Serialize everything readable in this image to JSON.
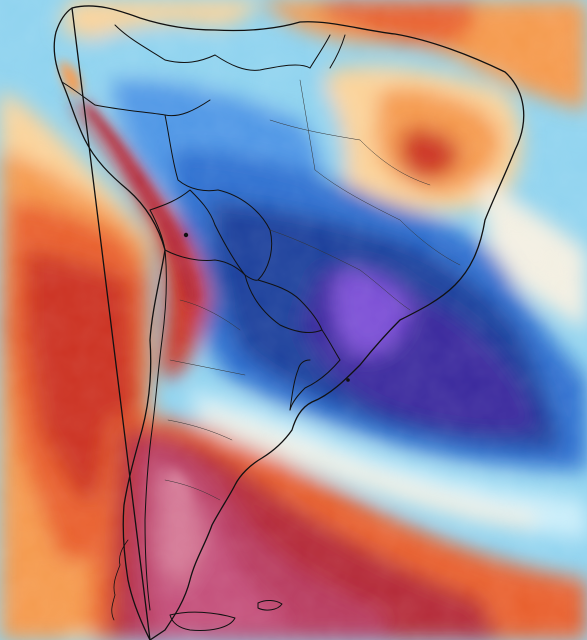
{
  "map": {
    "region": "South America",
    "type": "temperature-anomaly",
    "palette": {
      "deep_cold": "#3a2a9e",
      "violet": "#7b4fd6",
      "navy": "#1f3f9c",
      "blue": "#2f6fd0",
      "mid_blue": "#4f97e6",
      "light_blue": "#8fd3ef",
      "pale_blue": "#cbeefa",
      "near_zero": "#f3efe2",
      "pale_orange": "#fbd39a",
      "orange": "#f59a4e",
      "red_orange": "#e9612e",
      "red": "#cc3322",
      "dark_red": "#b52a38",
      "crimson": "#b83a5e",
      "magenta": "#c44f7a",
      "pink": "#d57a97",
      "border_line": "#111111"
    }
  }
}
